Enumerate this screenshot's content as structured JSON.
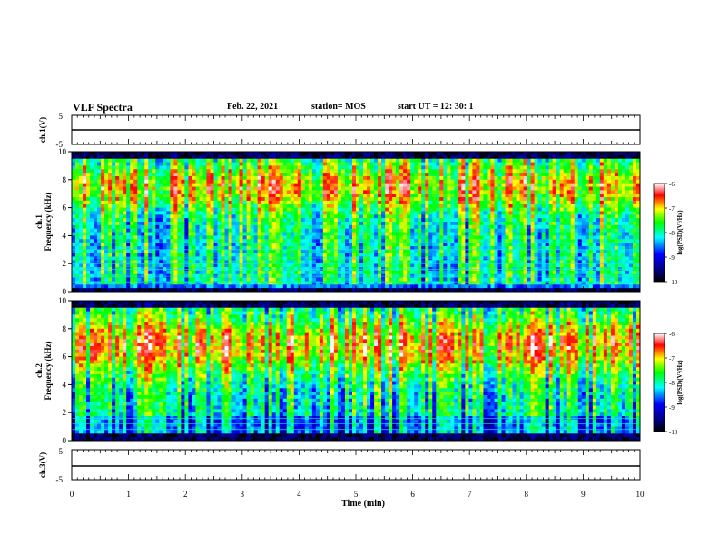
{
  "header": {
    "title": "VLF Spectra",
    "date": "Feb. 22, 2021",
    "station": "station= MOS",
    "start_ut": "start UT =  12: 30: 1"
  },
  "chart_data": [
    {
      "type": "line",
      "name": "ch1-voltage",
      "ylabel": "ch.1(V)",
      "ylim": [
        -5,
        5
      ],
      "yticks": [
        "5",
        "-5"
      ],
      "x": [
        0,
        10
      ],
      "y": [
        0,
        0
      ]
    },
    {
      "type": "heatmap",
      "name": "ch1-spectrogram",
      "ylabel_line1": "ch.1",
      "ylabel_line2": "Frequency (kHz)",
      "ylim": [
        0,
        10
      ],
      "yticks": [
        "0",
        "2",
        "4",
        "6",
        "8",
        "10"
      ],
      "xlim": [
        0,
        10
      ],
      "colorbar": {
        "label": "log(PSD)(V²/Hz)",
        "range": [
          -10,
          -6
        ],
        "ticks": [
          "-6",
          "-7",
          "-8",
          "-9",
          "-10"
        ]
      }
    },
    {
      "type": "heatmap",
      "name": "ch2-spectrogram",
      "ylabel_line1": "ch.2",
      "ylabel_line2": "Frequency (kHz)",
      "ylim": [
        0,
        10
      ],
      "yticks": [
        "0",
        "2",
        "4",
        "6",
        "8",
        "10"
      ],
      "xlim": [
        0,
        10
      ],
      "colorbar": {
        "label": "log(PSD)(V²/Hz)",
        "range": [
          -10,
          -6
        ],
        "ticks": [
          "-6",
          "-7",
          "-8",
          "-9",
          "-10"
        ]
      }
    },
    {
      "type": "line",
      "name": "ch3-voltage",
      "ylabel": "ch.3(V)",
      "ylim": [
        -5,
        5
      ],
      "yticks": [
        "5",
        "-5"
      ],
      "x": [
        0,
        10
      ],
      "y": [
        0,
        0
      ]
    }
  ],
  "xaxis": {
    "label": "Time (min)",
    "ticks": [
      "0",
      "1",
      "2",
      "3",
      "4",
      "5",
      "6",
      "7",
      "8",
      "9",
      "10"
    ]
  },
  "colors": {
    "colormap": [
      "#000000",
      "#000080",
      "#0000ff",
      "#00ffff",
      "#00ff00",
      "#ffff00",
      "#ff0000",
      "#ffffff"
    ]
  }
}
